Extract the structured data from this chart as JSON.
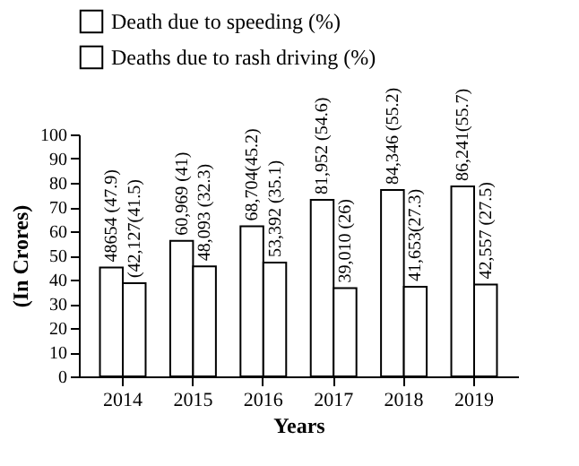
{
  "chart_data": {
    "type": "bar",
    "xlabel": "Years",
    "ylabel": "(In Crores)",
    "categories": [
      "2014",
      "2015",
      "2016",
      "2017",
      "2018",
      "2019"
    ],
    "series": [
      {
        "name": "Death due to speeding (%)",
        "color": "#ffffff",
        "values": [
          45,
          56,
          62,
          73,
          77,
          78.5
        ]
      },
      {
        "name": "Deaths due to rash driving (%)",
        "color": "#ffffff",
        "values": [
          38.5,
          45.5,
          47,
          36.5,
          37,
          38
        ]
      }
    ],
    "annotations": [
      {
        "text": "48654 (47.9)",
        "x": "2014",
        "y": 45
      },
      {
        "text": "(42,127(41.5)",
        "x": "2014",
        "y": 38.5
      },
      {
        "text": "60,969 (41)",
        "x": "2015",
        "y": 56
      },
      {
        "text": "48,093 (32.3)",
        "x": "2015",
        "y": 45.5
      },
      {
        "text": "68,704(45.2)",
        "x": "2016",
        "y": 62
      },
      {
        "text": "53,392 (35.1)",
        "x": "2016",
        "y": 47
      },
      {
        "text": "81,952 (54.6)",
        "x": "2017",
        "y": 73
      },
      {
        "text": "39,010 (26)",
        "x": "2017",
        "y": 36.5
      },
      {
        "text": "84,346 (55.2)",
        "x": "2018",
        "y": 77
      },
      {
        "text": "41,653(27.3)",
        "x": "2018",
        "y": 37
      },
      {
        "text": "86,241(55.7)",
        "x": "2019",
        "y": 78.5
      },
      {
        "text": "42,557 (27.5)",
        "x": "2019",
        "y": 38
      }
    ],
    "ylim": [
      0,
      100
    ],
    "yticks": [
      0,
      10,
      20,
      30,
      40,
      50,
      60,
      70,
      80,
      90,
      100
    ],
    "grid": false,
    "legend": "top"
  }
}
